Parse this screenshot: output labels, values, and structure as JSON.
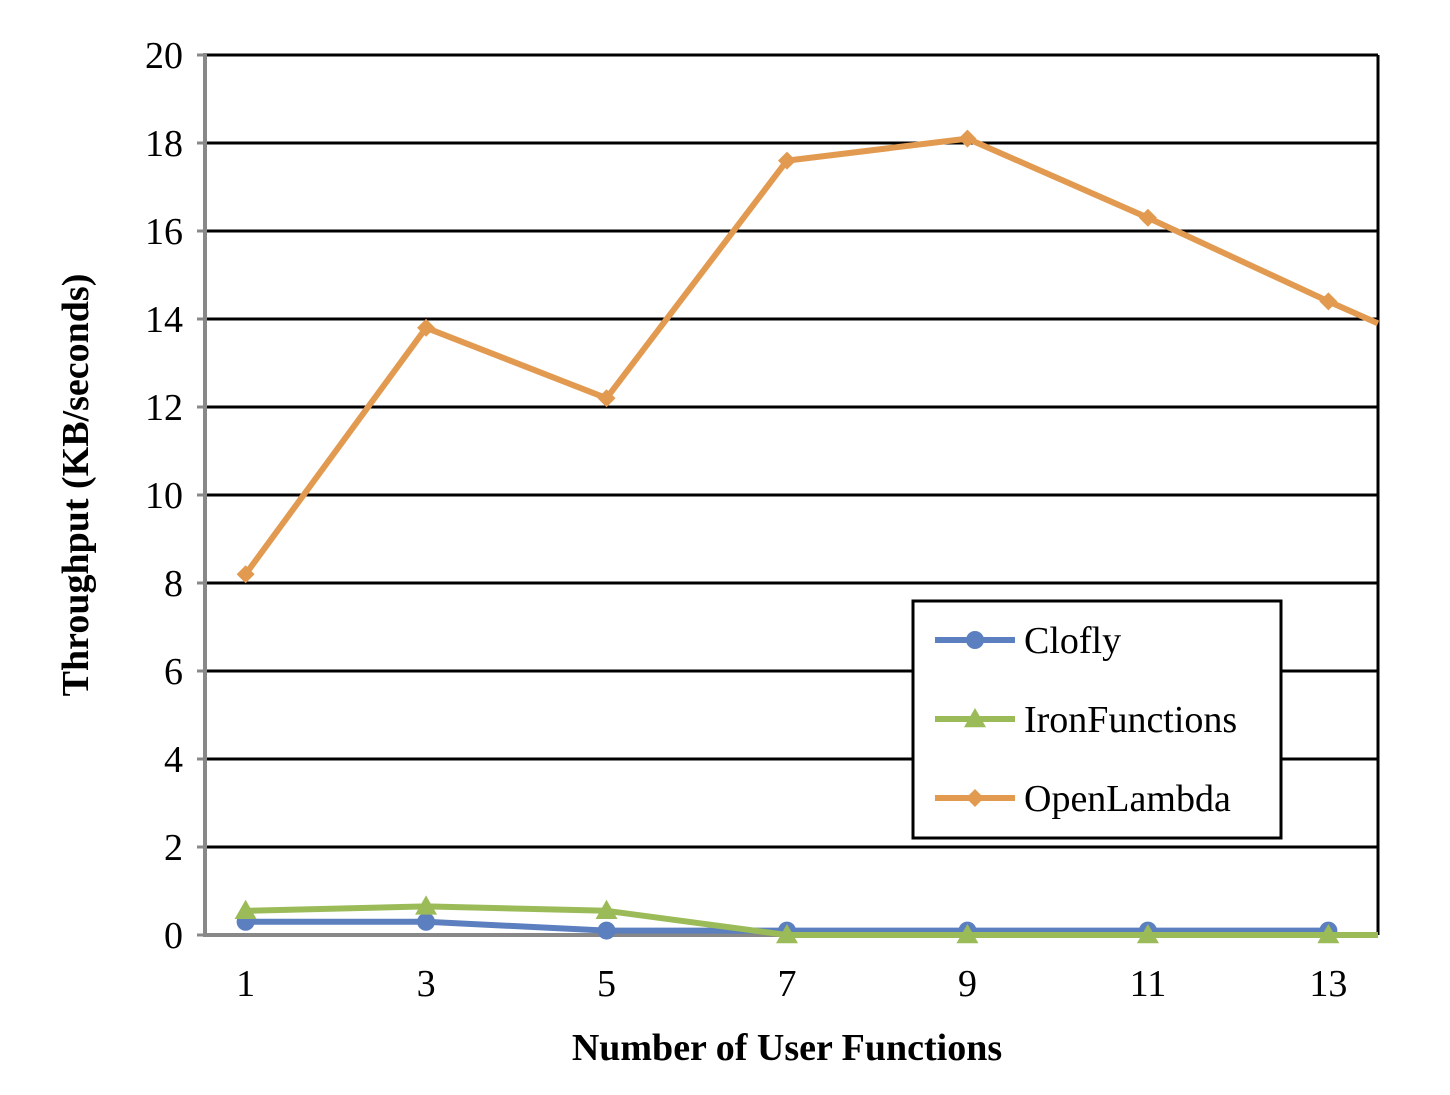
{
  "chart_data": {
    "type": "line",
    "xlabel": "Number of User Functions",
    "ylabel": "Throughput (KB/seconds)",
    "x": [
      1,
      3,
      5,
      7,
      9,
      11,
      13
    ],
    "x_ticks": [
      "1",
      "3",
      "5",
      "7",
      "9",
      "11",
      "13"
    ],
    "y_ticks": [
      "0",
      "2",
      "4",
      "6",
      "8",
      "10",
      "12",
      "14",
      "16",
      "18",
      "20"
    ],
    "xlim": [
      0.55,
      13.55
    ],
    "ylim": [
      0,
      20
    ],
    "grid": "horizontal",
    "legend_position": "lower-right",
    "series": [
      {
        "name": "Clofly",
        "color": "#5b7fbf",
        "marker": "circle",
        "x": [
          1,
          3,
          5,
          7,
          9,
          11,
          13
        ],
        "values": [
          0.3,
          0.3,
          0.1,
          0.1,
          0.1,
          0.1,
          0.1
        ]
      },
      {
        "name": "IronFunctions",
        "color": "#9bbb59",
        "marker": "triangle",
        "x": [
          1,
          3,
          5,
          7,
          9,
          11,
          13,
          13.55
        ],
        "values": [
          0.55,
          0.65,
          0.55,
          0.0,
          0.0,
          0.0,
          0.0,
          0.0
        ]
      },
      {
        "name": "OpenLambda",
        "color": "#e29a50",
        "marker": "diamond",
        "x": [
          1,
          3,
          5,
          7,
          9,
          11,
          13,
          13.55
        ],
        "values": [
          8.2,
          13.8,
          12.2,
          17.6,
          18.1,
          16.3,
          14.4,
          13.9
        ]
      }
    ]
  }
}
